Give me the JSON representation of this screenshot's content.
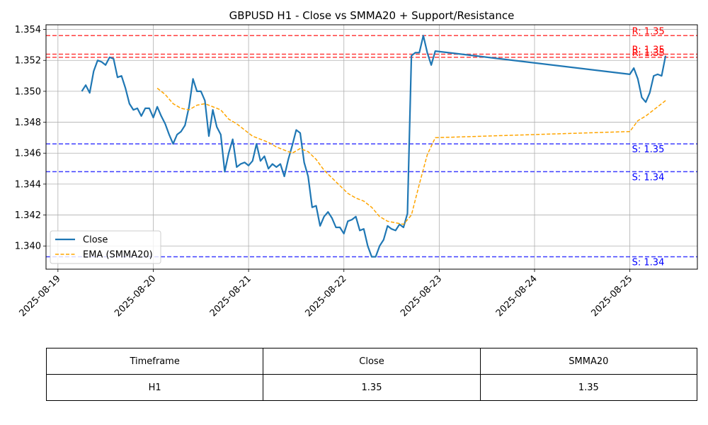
{
  "chart_data": {
    "type": "line",
    "title": "GBPUSD H1 - Close vs SMMA20 + Support/Resistance",
    "xlabel": "",
    "ylabel": "",
    "xlim": [
      "2025-08-18 21:00",
      "2025-08-25 17:00"
    ],
    "ylim": [
      1.3385,
      1.3543
    ],
    "x_ticks": [
      "2025-08-19",
      "2025-08-20",
      "2025-08-21",
      "2025-08-22",
      "2025-08-23",
      "2025-08-24",
      "2025-08-25"
    ],
    "y_ticks": [
      "1.340",
      "1.342",
      "1.344",
      "1.346",
      "1.348",
      "1.350",
      "1.352",
      "1.354"
    ],
    "grid": true,
    "legend_position": "lower-left",
    "series": [
      {
        "name": "Close",
        "color": "#1f77b4",
        "style": "solid",
        "points": [
          [
            "2025-08-19 06:00",
            1.35
          ],
          [
            "2025-08-19 07:00",
            1.3504
          ],
          [
            "2025-08-19 08:00",
            1.3499
          ],
          [
            "2025-08-19 09:00",
            1.3513
          ],
          [
            "2025-08-19 10:00",
            1.352
          ],
          [
            "2025-08-19 11:00",
            1.3519
          ],
          [
            "2025-08-19 12:00",
            1.3517
          ],
          [
            "2025-08-19 13:00",
            1.3522
          ],
          [
            "2025-08-19 14:00",
            1.3521
          ],
          [
            "2025-08-19 15:00",
            1.3509
          ],
          [
            "2025-08-19 16:00",
            1.351
          ],
          [
            "2025-08-19 17:00",
            1.3502
          ],
          [
            "2025-08-19 18:00",
            1.3492
          ],
          [
            "2025-08-19 19:00",
            1.3488
          ],
          [
            "2025-08-19 20:00",
            1.3489
          ],
          [
            "2025-08-19 21:00",
            1.3484
          ],
          [
            "2025-08-19 22:00",
            1.3489
          ],
          [
            "2025-08-19 23:00",
            1.3489
          ],
          [
            "2025-08-20 00:00",
            1.3483
          ],
          [
            "2025-08-20 01:00",
            1.349
          ],
          [
            "2025-08-20 02:00",
            1.3484
          ],
          [
            "2025-08-20 03:00",
            1.3479
          ],
          [
            "2025-08-20 04:00",
            1.3472
          ],
          [
            "2025-08-20 05:00",
            1.3466
          ],
          [
            "2025-08-20 06:00",
            1.3472
          ],
          [
            "2025-08-20 07:00",
            1.3474
          ],
          [
            "2025-08-20 08:00",
            1.3478
          ],
          [
            "2025-08-20 09:00",
            1.349
          ],
          [
            "2025-08-20 10:00",
            1.3508
          ],
          [
            "2025-08-20 11:00",
            1.35
          ],
          [
            "2025-08-20 12:00",
            1.35
          ],
          [
            "2025-08-20 13:00",
            1.3494
          ],
          [
            "2025-08-20 14:00",
            1.3471
          ],
          [
            "2025-08-20 15:00",
            1.3488
          ],
          [
            "2025-08-20 16:00",
            1.3477
          ],
          [
            "2025-08-20 17:00",
            1.3472
          ],
          [
            "2025-08-20 18:00",
            1.3448
          ],
          [
            "2025-08-20 19:00",
            1.346
          ],
          [
            "2025-08-20 20:00",
            1.3469
          ],
          [
            "2025-08-20 21:00",
            1.3451
          ],
          [
            "2025-08-20 22:00",
            1.3453
          ],
          [
            "2025-08-20 23:00",
            1.3454
          ],
          [
            "2025-08-21 00:00",
            1.3452
          ],
          [
            "2025-08-21 01:00",
            1.3455
          ],
          [
            "2025-08-21 02:00",
            1.3466
          ],
          [
            "2025-08-21 03:00",
            1.3455
          ],
          [
            "2025-08-21 04:00",
            1.3458
          ],
          [
            "2025-08-21 05:00",
            1.345
          ],
          [
            "2025-08-21 06:00",
            1.3453
          ],
          [
            "2025-08-21 07:00",
            1.3451
          ],
          [
            "2025-08-21 08:00",
            1.3453
          ],
          [
            "2025-08-21 09:00",
            1.3445
          ],
          [
            "2025-08-21 10:00",
            1.3456
          ],
          [
            "2025-08-21 11:00",
            1.3465
          ],
          [
            "2025-08-21 12:00",
            1.3475
          ],
          [
            "2025-08-21 13:00",
            1.3473
          ],
          [
            "2025-08-21 14:00",
            1.3454
          ],
          [
            "2025-08-21 15:00",
            1.3445
          ],
          [
            "2025-08-21 16:00",
            1.3425
          ],
          [
            "2025-08-21 17:00",
            1.3426
          ],
          [
            "2025-08-21 18:00",
            1.3413
          ],
          [
            "2025-08-21 19:00",
            1.3419
          ],
          [
            "2025-08-21 20:00",
            1.3422
          ],
          [
            "2025-08-21 21:00",
            1.3418
          ],
          [
            "2025-08-21 22:00",
            1.3412
          ],
          [
            "2025-08-21 23:00",
            1.3412
          ],
          [
            "2025-08-22 00:00",
            1.3408
          ],
          [
            "2025-08-22 01:00",
            1.3416
          ],
          [
            "2025-08-22 02:00",
            1.3417
          ],
          [
            "2025-08-22 03:00",
            1.3419
          ],
          [
            "2025-08-22 04:00",
            1.341
          ],
          [
            "2025-08-22 05:00",
            1.3411
          ],
          [
            "2025-08-22 06:00",
            1.34
          ],
          [
            "2025-08-22 07:00",
            1.3393
          ],
          [
            "2025-08-22 08:00",
            1.3393
          ],
          [
            "2025-08-22 09:00",
            1.34
          ],
          [
            "2025-08-22 10:00",
            1.3404
          ],
          [
            "2025-08-22 11:00",
            1.3413
          ],
          [
            "2025-08-22 12:00",
            1.3411
          ],
          [
            "2025-08-22 13:00",
            1.341
          ],
          [
            "2025-08-22 14:00",
            1.3414
          ],
          [
            "2025-08-22 15:00",
            1.3412
          ],
          [
            "2025-08-22 16:00",
            1.3421
          ],
          [
            "2025-08-22 17:00",
            1.3523
          ],
          [
            "2025-08-22 18:00",
            1.3525
          ],
          [
            "2025-08-22 19:00",
            1.3525
          ],
          [
            "2025-08-22 20:00",
            1.3536
          ],
          [
            "2025-08-22 21:00",
            1.3525
          ],
          [
            "2025-08-22 22:00",
            1.3517
          ],
          [
            "2025-08-22 23:00",
            1.3526
          ],
          [
            "2025-08-25 00:00",
            1.3511
          ],
          [
            "2025-08-25 01:00",
            1.3515
          ],
          [
            "2025-08-25 02:00",
            1.3508
          ],
          [
            "2025-08-25 03:00",
            1.3496
          ],
          [
            "2025-08-25 04:00",
            1.3493
          ],
          [
            "2025-08-25 05:00",
            1.3499
          ],
          [
            "2025-08-25 06:00",
            1.351
          ],
          [
            "2025-08-25 07:00",
            1.3511
          ],
          [
            "2025-08-25 08:00",
            1.351
          ],
          [
            "2025-08-25 09:00",
            1.3523
          ]
        ]
      },
      {
        "name": "EMA (SMMA20)",
        "color": "#ffa500",
        "style": "dashed",
        "points": [
          [
            "2025-08-20 01:00",
            1.3502
          ],
          [
            "2025-08-20 03:00",
            1.3498
          ],
          [
            "2025-08-20 05:00",
            1.3492
          ],
          [
            "2025-08-20 07:00",
            1.3489
          ],
          [
            "2025-08-20 09:00",
            1.3488
          ],
          [
            "2025-08-20 11:00",
            1.3491
          ],
          [
            "2025-08-20 13:00",
            1.3492
          ],
          [
            "2025-08-20 15:00",
            1.349
          ],
          [
            "2025-08-20 17:00",
            1.3488
          ],
          [
            "2025-08-20 19:00",
            1.3482
          ],
          [
            "2025-08-20 21:00",
            1.3479
          ],
          [
            "2025-08-20 23:00",
            1.3475
          ],
          [
            "2025-08-21 01:00",
            1.3471
          ],
          [
            "2025-08-21 03:00",
            1.3469
          ],
          [
            "2025-08-21 05:00",
            1.3467
          ],
          [
            "2025-08-21 07:00",
            1.3464
          ],
          [
            "2025-08-21 09:00",
            1.3462
          ],
          [
            "2025-08-21 11:00",
            1.346
          ],
          [
            "2025-08-21 13:00",
            1.3463
          ],
          [
            "2025-08-21 15:00",
            1.3461
          ],
          [
            "2025-08-21 17:00",
            1.3456
          ],
          [
            "2025-08-21 19:00",
            1.3449
          ],
          [
            "2025-08-21 21:00",
            1.3444
          ],
          [
            "2025-08-21 23:00",
            1.3439
          ],
          [
            "2025-08-22 01:00",
            1.3434
          ],
          [
            "2025-08-22 03:00",
            1.3431
          ],
          [
            "2025-08-22 05:00",
            1.3429
          ],
          [
            "2025-08-22 07:00",
            1.3425
          ],
          [
            "2025-08-22 09:00",
            1.3419
          ],
          [
            "2025-08-22 11:00",
            1.3416
          ],
          [
            "2025-08-22 13:00",
            1.3415
          ],
          [
            "2025-08-22 15:00",
            1.3414
          ],
          [
            "2025-08-22 17:00",
            1.342
          ],
          [
            "2025-08-22 19:00",
            1.344
          ],
          [
            "2025-08-22 21:00",
            1.3459
          ],
          [
            "2025-08-22 23:00",
            1.347
          ],
          [
            "2025-08-25 00:00",
            1.3474
          ],
          [
            "2025-08-25 02:00",
            1.3481
          ],
          [
            "2025-08-25 04:00",
            1.3484
          ],
          [
            "2025-08-25 06:00",
            1.3488
          ],
          [
            "2025-08-25 09:00",
            1.3494
          ]
        ]
      }
    ],
    "hlines": [
      {
        "kind": "resistance",
        "value": 1.3536,
        "label": "R: 1.35",
        "color": "#ff0000"
      },
      {
        "kind": "resistance",
        "value": 1.3524,
        "label": "R: 1.35",
        "color": "#ff0000"
      },
      {
        "kind": "resistance",
        "value": 1.3522,
        "label": "R: 1.35",
        "color": "#ff0000"
      },
      {
        "kind": "support",
        "value": 1.3466,
        "label": "S: 1.35",
        "color": "#0000ff"
      },
      {
        "kind": "support",
        "value": 1.3448,
        "label": "S: 1.34",
        "color": "#0000ff"
      },
      {
        "kind": "support",
        "value": 1.3393,
        "label": "S: 1.34",
        "color": "#0000ff"
      }
    ]
  },
  "table": {
    "headers": [
      "Timeframe",
      "Close",
      "SMMA20"
    ],
    "row": [
      "H1",
      "1.35",
      "1.35"
    ]
  }
}
